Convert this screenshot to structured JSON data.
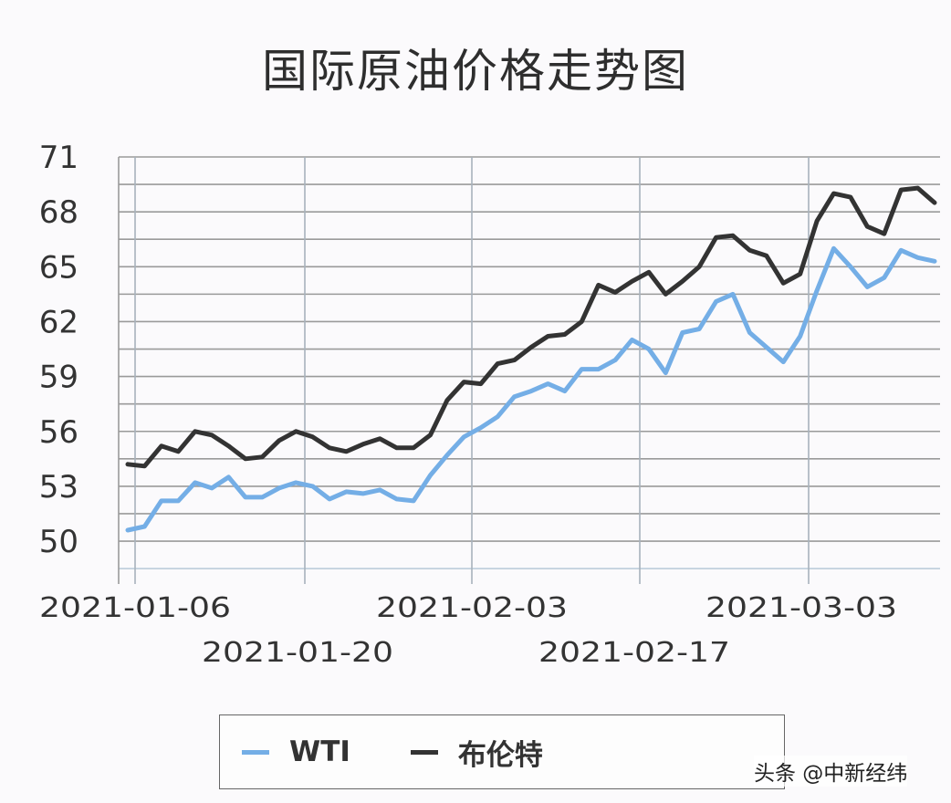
{
  "title": "国际原油价格走势图",
  "legend": {
    "items": [
      {
        "label": "WTI",
        "color": "#74aee6"
      },
      {
        "label": "布伦特",
        "color": "#333333"
      }
    ]
  },
  "watermark": "头条 @中新经纬",
  "colors": {
    "wti": "#74aee6",
    "brent": "#333333",
    "grid": "#9a9a9a",
    "background": "#fbfafc"
  },
  "chart_data": {
    "type": "line",
    "title": "国际原油价格走势图",
    "xlabel": "",
    "ylabel": "",
    "ylim": [
      49,
      71
    ],
    "yticks": [
      50,
      53,
      56,
      59,
      62,
      65,
      68,
      71
    ],
    "xtick_labels": [
      "2021-01-06",
      "2021-01-20",
      "2021-02-03",
      "2021-02-17",
      "2021-03-03"
    ],
    "xtick_index": [
      0,
      10,
      20,
      30,
      40
    ],
    "grid": true,
    "legend_position": "bottom",
    "x": [
      "t0",
      "t1",
      "t2",
      "t3",
      "t4",
      "t5",
      "t6",
      "t7",
      "t8",
      "t9",
      "t10",
      "t11",
      "t12",
      "t13",
      "t14",
      "t15",
      "t16",
      "t17",
      "t18",
      "t19",
      "t20",
      "t21",
      "t22",
      "t23",
      "t24",
      "t25",
      "t26",
      "t27",
      "t28",
      "t29",
      "t30",
      "t31",
      "t32",
      "t33",
      "t34",
      "t35",
      "t36",
      "t37",
      "t38",
      "t39",
      "t40",
      "t41",
      "t42",
      "t43",
      "t44",
      "t45",
      "t46",
      "t47",
      "t48"
    ],
    "series": [
      {
        "name": "WTI",
        "color": "#74aee6",
        "values": [
          50.6,
          50.8,
          52.2,
          52.2,
          53.2,
          52.9,
          53.5,
          52.4,
          52.4,
          52.9,
          53.2,
          53.0,
          52.3,
          52.7,
          52.6,
          52.8,
          52.3,
          52.2,
          53.6,
          54.7,
          55.7,
          56.2,
          56.8,
          57.9,
          58.2,
          58.6,
          58.2,
          59.4,
          59.4,
          59.9,
          61.0,
          60.5,
          59.2,
          61.4,
          61.6,
          63.1,
          63.5,
          61.4,
          60.6,
          59.8,
          61.2,
          63.7,
          66.0,
          65.0,
          63.9,
          64.4,
          65.9,
          65.5,
          65.3
        ]
      },
      {
        "name": "布伦特",
        "color": "#333333",
        "values": [
          54.2,
          54.1,
          55.2,
          54.9,
          56.0,
          55.8,
          55.2,
          54.5,
          54.6,
          55.5,
          56.0,
          55.7,
          55.1,
          54.9,
          55.3,
          55.6,
          55.1,
          55.1,
          55.8,
          57.7,
          58.7,
          58.6,
          59.7,
          59.9,
          60.6,
          61.2,
          61.3,
          62.0,
          64.0,
          63.6,
          64.2,
          64.7,
          63.5,
          64.2,
          65.0,
          66.6,
          66.7,
          65.9,
          65.6,
          64.1,
          64.6,
          67.5,
          69.0,
          68.8,
          67.2,
          66.8,
          69.2,
          69.3,
          68.5
        ]
      }
    ]
  }
}
